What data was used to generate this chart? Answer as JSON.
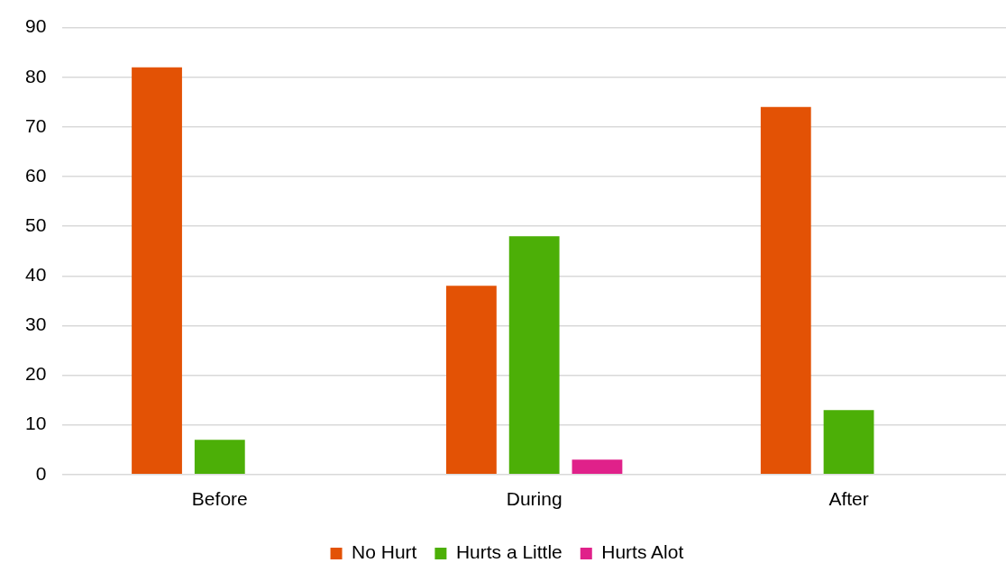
{
  "chart_data": {
    "type": "bar",
    "categories": [
      "Before",
      "During",
      "After"
    ],
    "series": [
      {
        "name": "No Hurt",
        "color": "#e35205",
        "values": [
          82,
          38,
          74
        ]
      },
      {
        "name": "Hurts a Little",
        "color": "#4caf07",
        "values": [
          7,
          48,
          13
        ]
      },
      {
        "name": "Hurts Alot",
        "color": "#e0218a",
        "values": [
          0,
          3,
          0
        ]
      }
    ],
    "ylim": [
      0,
      90
    ],
    "yticks": [
      0,
      10,
      20,
      30,
      40,
      50,
      60,
      70,
      80,
      90
    ],
    "grid": "y",
    "legend": "bottom"
  }
}
